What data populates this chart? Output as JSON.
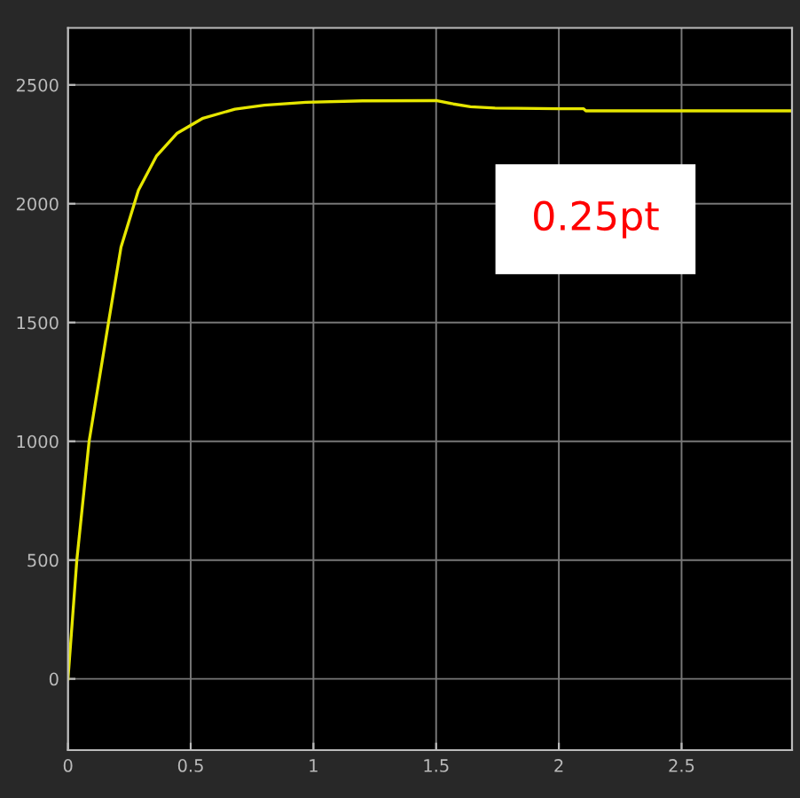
{
  "chart_data": {
    "type": "line",
    "series": [
      {
        "color": "#e6e600",
        "x": [
          0,
          0.036,
          0.086,
          0.165,
          0.216,
          0.287,
          0.36,
          0.445,
          0.55,
          0.68,
          0.8,
          0.97,
          1.2,
          1.5,
          1.57,
          1.64,
          1.74,
          2.0,
          2.1,
          2.11,
          2.95
        ],
        "values": [
          0,
          500,
          1000,
          1500,
          1817,
          2057,
          2200,
          2297,
          2360,
          2398,
          2415,
          2427,
          2433,
          2434,
          2420,
          2408,
          2403,
          2400,
          2400,
          2391,
          2391
        ]
      }
    ],
    "xlim": [
      0,
      2.95
    ],
    "xticks": [
      0,
      0.5,
      1,
      1.5,
      2,
      2.5
    ],
    "ylim": [
      -300,
      2740
    ],
    "yticks": [
      0,
      500,
      1000,
      1500,
      2000,
      2500
    ],
    "grid": true,
    "annotations": [
      "0.25pt"
    ]
  }
}
